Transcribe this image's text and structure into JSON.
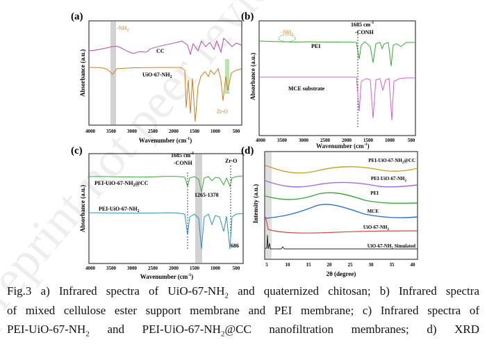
{
  "panels": [
    {
      "letter": "(a)",
      "ylabel": "Absorbance (a.u.)",
      "xlabel": "Wavenumber (cm",
      "xlabel_sup": "-1",
      "xlabel_end": ")",
      "xticks": [
        "4000",
        "3500",
        "3000",
        "2500",
        "2000",
        "1500",
        "1000",
        "500"
      ],
      "annotations": {
        "nh2": "-NH",
        "nh2_sub": "2",
        "zro": "Zr-O"
      },
      "series": [
        {
          "name": "CC",
          "color": "#b04bb0"
        },
        {
          "name": "UiO-67-NH",
          "sub": "2",
          "color": "#d27a1e"
        }
      ]
    },
    {
      "letter": "(b)",
      "ylabel": "Absorbance (a.u.)",
      "xlabel": "Wavenumber (cm",
      "xlabel_sup": "-1",
      "xlabel_end": ")",
      "xticks": [
        "4000",
        "3500",
        "3000",
        "2500",
        "2000",
        "1500",
        "1000",
        "500"
      ],
      "annotations": {
        "nh2": "-NH",
        "nh2_sub": "2",
        "peak": "1685 cm",
        "peak_sup": "-1",
        "group": "-CONH"
      },
      "series": [
        {
          "name": "PEI",
          "color": "#3aa63a"
        },
        {
          "name": "MCE substrate",
          "color": "#d35fd3"
        }
      ]
    },
    {
      "letter": "(c)",
      "ylabel": "Absorbance (a.u.)",
      "xlabel": "Wavenumber (cm",
      "xlabel_sup": "-1",
      "xlabel_end": ")",
      "xticks": [
        "4000",
        "3500",
        "3000",
        "2500",
        "2000",
        "1500",
        "1000",
        "500"
      ],
      "annotations": {
        "peak": "1685 cm",
        "peak_sup": "-1",
        "group": "-CONH",
        "zro": "Zr-O",
        "range": "1265-1378",
        "p686": "686"
      },
      "series": [
        {
          "name": "PEI-UiO-67-NH",
          "sub": "2",
          "tail": "@CC",
          "color": "#3aa63a"
        },
        {
          "name": "PEI-UiO-67-NH",
          "sub": "2",
          "tail": "",
          "color": "#2b8fc2"
        }
      ]
    },
    {
      "letter": "(d)",
      "ylabel": "Intensity (a.u.)",
      "xlabel": "2θ (degree)",
      "xticks": [
        "5",
        "10",
        "15",
        "20",
        "25",
        "30",
        "35",
        "40"
      ],
      "series": [
        {
          "name": "PEI-UiO-67-NH",
          "sub": "2",
          "tail": "@CC",
          "color": "#c9a227"
        },
        {
          "name": "PEI-UiO-67-NH",
          "sub": "2",
          "tail": "",
          "color": "#a66ad6"
        },
        {
          "name": "PEI",
          "sub": "",
          "tail": "",
          "color": "#3aa63a"
        },
        {
          "name": "MCE",
          "sub": "",
          "tail": "",
          "color": "#2b6fc2"
        },
        {
          "name": "UiO-67-NH",
          "sub": "2",
          "tail": "",
          "color": "#d24a4a"
        },
        {
          "name": "UiO-67-NH",
          "sub": "2",
          "tail": " Simulated",
          "color": "#222222"
        }
      ]
    }
  ],
  "caption": {
    "line1_a": "Fig.3 a) Infrared spectra of UiO-67-NH",
    "line1_sub": "2",
    "line1_b": " and quaternized chitosan; b) Infrared spectra",
    "line2": "of mixed cellulose ester support membrane and PEI membrane; c) Infrared spectra of",
    "line3_a": "PEI-UiO-67-NH",
    "line3_sub1": "2",
    "line3_b": " and PEI-UiO-67-NH",
    "line3_sub2": "2",
    "line3_c": "@CC nanofiltration membranes; d) XRD"
  },
  "watermark": "preprint not peer reviewed"
}
